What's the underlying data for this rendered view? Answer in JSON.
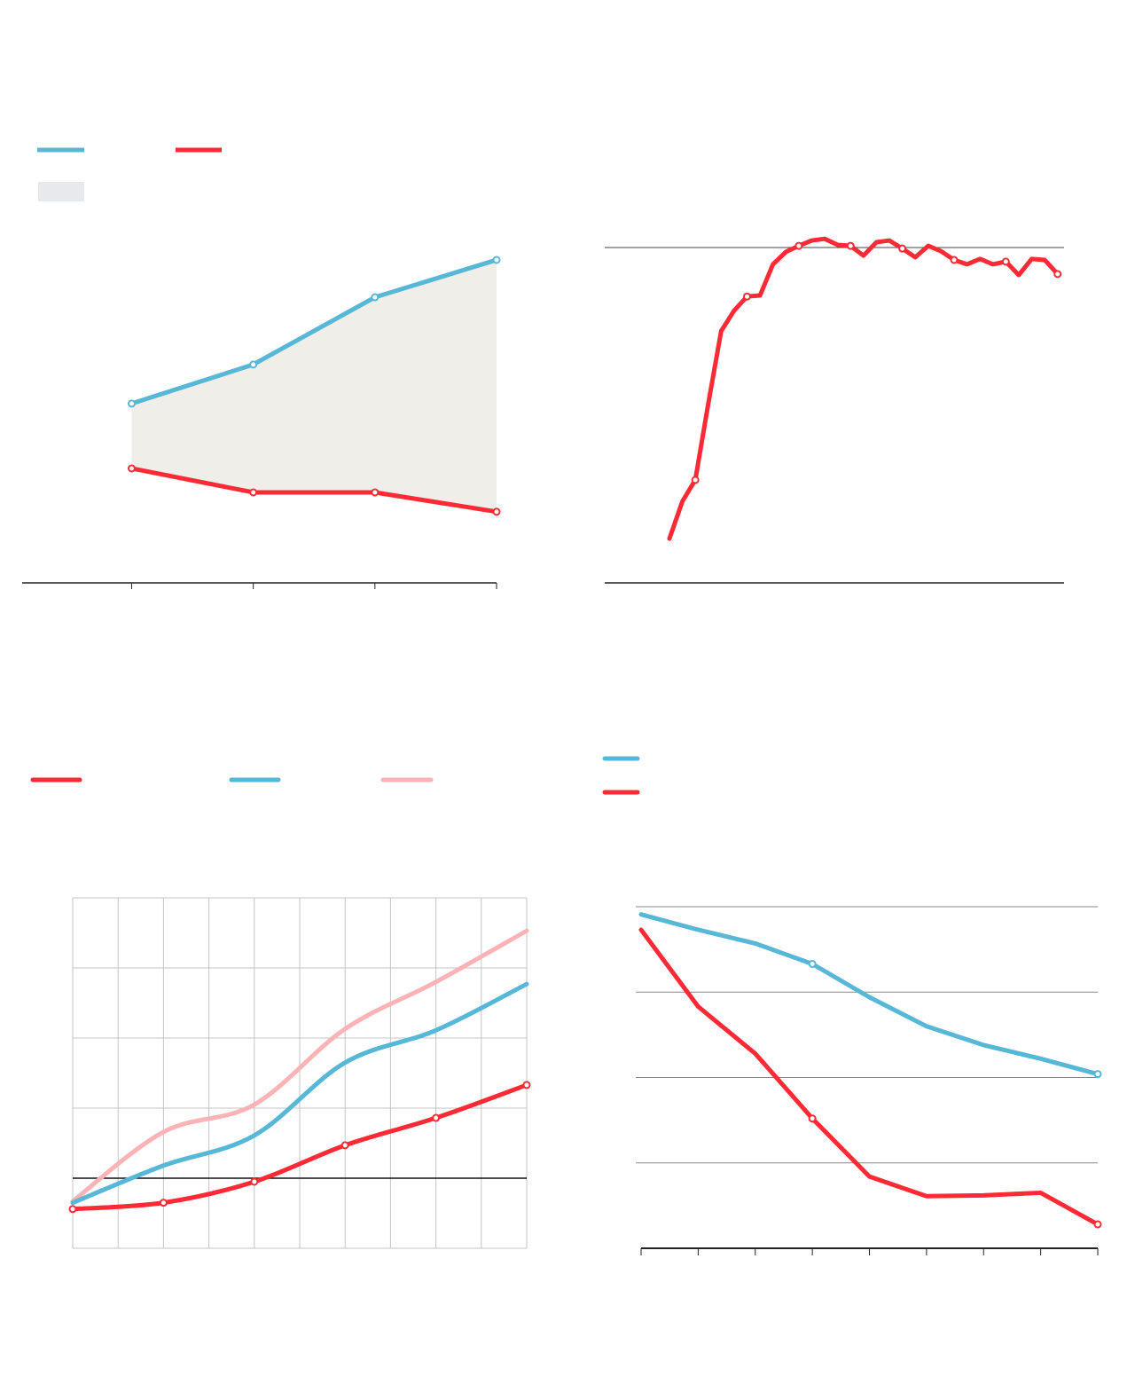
{
  "colors": {
    "blue": "#56b7d6",
    "red": "#fb2a35",
    "pink": "#fbb3b5",
    "band": "#efeee9",
    "band_legend": "#e8e9ec"
  },
  "chart_data": [
    {
      "type": "area",
      "grid": false,
      "legend": "top-left",
      "x": [
        1,
        2,
        3,
        4
      ],
      "xlim": [
        0.1,
        4
      ],
      "ylim": [
        0,
        100
      ],
      "series": [
        {
          "color": "#56b7d6",
          "values": [
            50.9,
            62.0,
            81.1,
            91.7
          ],
          "markers": [
            0,
            1,
            2,
            3
          ]
        },
        {
          "color": "#fb2a35",
          "values": [
            32.5,
            25.7,
            25.7,
            20.2
          ],
          "markers": [
            0,
            1,
            2,
            3
          ]
        }
      ],
      "band_between_series": true
    },
    {
      "type": "line",
      "grid": false,
      "reference_line": 100,
      "x": [
        0,
        1,
        2,
        3,
        4,
        5,
        6,
        7,
        8,
        9,
        10,
        11,
        12,
        13,
        14,
        15,
        16,
        17,
        18,
        19,
        20,
        21,
        22,
        23,
        24,
        25,
        26,
        27,
        28,
        29,
        30
      ],
      "xlim": [
        -5,
        30.5
      ],
      "ylim": [
        0,
        100
      ],
      "series": [
        {
          "color": "#fb2a35",
          "values": [
            13.2,
            24.3,
            30.7,
            53.4,
            75.1,
            81.2,
            85.4,
            85.7,
            95.0,
            98.7,
            100.5,
            102.1,
            102.6,
            100.8,
            100.5,
            97.6,
            101.6,
            102.1,
            99.7,
            97.1,
            100.5,
            98.9,
            96.3,
            95.0,
            96.6,
            95.0,
            95.8,
            91.8,
            96.6,
            96.3,
            92.1
          ],
          "markers": [
            2,
            6,
            10,
            14,
            18,
            22,
            26,
            30
          ]
        }
      ]
    },
    {
      "type": "line",
      "grid": true,
      "legend": "top",
      "smooth": true,
      "x": [
        0,
        2,
        4,
        6,
        8,
        10
      ],
      "xlim": [
        0,
        10
      ],
      "ylim": [
        -1,
        4
      ],
      "zero_line": 0,
      "series": [
        {
          "color": "#fbb3b5",
          "values": [
            -0.33,
            0.66,
            1.05,
            2.13,
            2.8,
            3.53
          ],
          "markers": []
        },
        {
          "color": "#56b7d6",
          "values": [
            -0.35,
            0.18,
            0.61,
            1.65,
            2.11,
            2.77
          ],
          "markers": []
        },
        {
          "color": "#fb2a35",
          "values": [
            -0.44,
            -0.35,
            -0.05,
            0.47,
            0.86,
            1.33
          ],
          "markers": [
            0,
            1,
            2,
            3,
            4,
            5
          ]
        }
      ],
      "legend_order": [
        2,
        1,
        0
      ]
    },
    {
      "type": "line",
      "grid": true,
      "legend": "top-left",
      "x": [
        0,
        1,
        2,
        3,
        4,
        5,
        6,
        7,
        8
      ],
      "xlim": [
        0,
        8
      ],
      "ylim": [
        0,
        4
      ],
      "series": [
        {
          "color": "#56b7d6",
          "values": [
            3.91,
            3.73,
            3.57,
            3.33,
            2.94,
            2.6,
            2.38,
            2.22,
            2.04
          ],
          "markers": [
            3,
            8
          ]
        },
        {
          "color": "#fb2a35",
          "values": [
            3.73,
            2.83,
            2.28,
            1.52,
            0.84,
            0.61,
            0.62,
            0.65,
            0.28
          ],
          "markers": [
            3,
            8
          ]
        }
      ]
    }
  ]
}
